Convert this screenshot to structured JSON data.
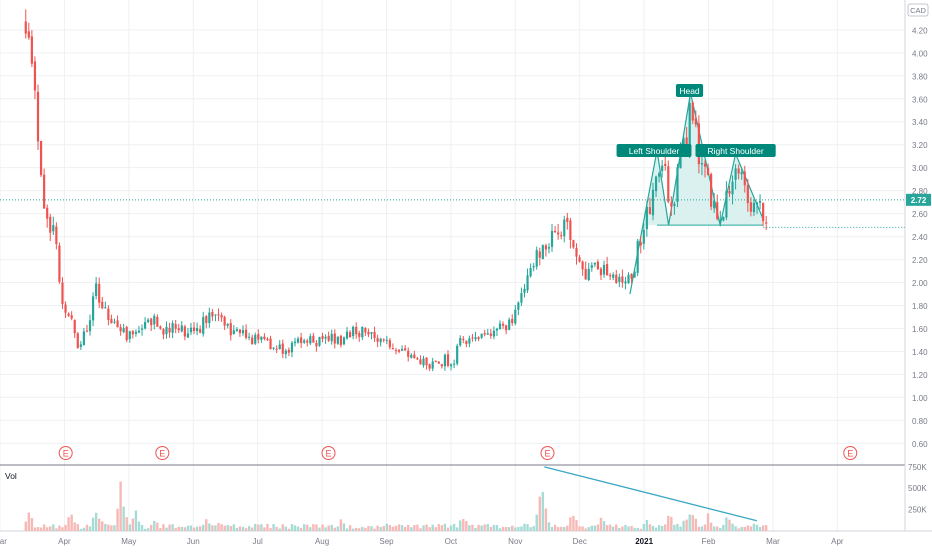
{
  "header": {
    "currency": "CAD"
  },
  "volume_label": "Vol",
  "colors": {
    "up": "#26a69a",
    "down": "#ef5350",
    "pattern_line": "#26a69a",
    "pattern_fill": "#d5efec",
    "label_bg": "#00897b",
    "earnings": "#ef5350",
    "grid": "#eef0f3",
    "axis_text": "#787b86"
  },
  "chart_data": {
    "type": "candlestick",
    "price_axis": {
      "ticks": [
        "0.60",
        "0.80",
        "1.00",
        "1.20",
        "1.40",
        "1.60",
        "1.80",
        "2.00",
        "2.20",
        "2.40",
        "2.60",
        "2.80",
        "3.00",
        "3.20",
        "3.40",
        "3.60",
        "3.80",
        "4.00",
        "4.20"
      ],
      "range": [
        0.42,
        4.46
      ],
      "current_price": "2.72",
      "reference_level": 2.48
    },
    "volume_axis": {
      "ticks": [
        "250K",
        "500K",
        "750K"
      ],
      "range": [
        0,
        760000
      ]
    },
    "time_axis": {
      "labels": [
        "Mar",
        "Apr",
        "May",
        "Jun",
        "Jul",
        "Aug",
        "Sep",
        "Oct",
        "Nov",
        "Dec",
        "2021",
        "Feb",
        "Mar",
        "Apr"
      ],
      "label_months": [
        0,
        1,
        2,
        3,
        4,
        5,
        6,
        7,
        8,
        9,
        10,
        11,
        12,
        13
      ],
      "range": [
        0,
        14.05
      ]
    },
    "earnings_markers": {
      "symbol": "E",
      "months": [
        1.02,
        2.52,
        5.1,
        8.5,
        13.2
      ]
    },
    "price_path": [
      [
        0.4,
        4.28
      ],
      [
        0.6,
        3.3
      ],
      [
        0.7,
        2.6
      ],
      [
        0.85,
        2.4
      ],
      [
        1.0,
        1.75
      ],
      [
        1.1,
        1.7
      ],
      [
        1.2,
        1.45
      ],
      [
        1.35,
        1.6
      ],
      [
        1.5,
        1.95
      ],
      [
        1.65,
        1.75
      ],
      [
        1.8,
        1.65
      ],
      [
        1.95,
        1.55
      ],
      [
        2.1,
        1.58
      ],
      [
        2.3,
        1.72
      ],
      [
        2.5,
        1.6
      ],
      [
        2.7,
        1.62
      ],
      [
        2.9,
        1.58
      ],
      [
        3.1,
        1.6
      ],
      [
        3.3,
        1.75
      ],
      [
        3.5,
        1.62
      ],
      [
        3.7,
        1.56
      ],
      [
        3.9,
        1.52
      ],
      [
        4.1,
        1.48
      ],
      [
        4.3,
        1.42
      ],
      [
        4.5,
        1.44
      ],
      [
        4.7,
        1.5
      ],
      [
        4.9,
        1.48
      ],
      [
        5.1,
        1.52
      ],
      [
        5.3,
        1.5
      ],
      [
        5.5,
        1.58
      ],
      [
        5.7,
        1.55
      ],
      [
        5.9,
        1.48
      ],
      [
        6.1,
        1.42
      ],
      [
        6.3,
        1.38
      ],
      [
        6.5,
        1.3
      ],
      [
        6.7,
        1.28
      ],
      [
        6.9,
        1.32
      ],
      [
        7.05,
        1.33
      ],
      [
        7.15,
        1.48
      ],
      [
        7.35,
        1.5
      ],
      [
        7.55,
        1.53
      ],
      [
        7.75,
        1.58
      ],
      [
        7.95,
        1.7
      ],
      [
        8.1,
        1.9
      ],
      [
        8.22,
        2.08
      ],
      [
        8.4,
        2.32
      ],
      [
        8.55,
        2.4
      ],
      [
        8.7,
        2.48
      ],
      [
        8.85,
        2.44
      ],
      [
        8.98,
        2.2
      ],
      [
        9.1,
        2.08
      ],
      [
        9.25,
        2.14
      ],
      [
        9.4,
        2.1
      ],
      [
        9.55,
        2.05
      ],
      [
        9.7,
        2.0
      ],
      [
        9.85,
        2.15
      ],
      [
        9.92,
        2.35
      ],
      [
        10.05,
        2.58
      ],
      [
        10.15,
        2.86
      ],
      [
        10.3,
        2.98
      ],
      [
        10.45,
        2.62
      ],
      [
        10.55,
        3.05
      ],
      [
        10.65,
        3.2
      ],
      [
        10.72,
        3.5
      ],
      [
        10.85,
        3.12
      ],
      [
        10.95,
        2.98
      ],
      [
        11.05,
        2.72
      ],
      [
        11.15,
        2.55
      ],
      [
        11.3,
        2.78
      ],
      [
        11.4,
        2.98
      ],
      [
        11.5,
        2.88
      ],
      [
        11.62,
        2.74
      ],
      [
        11.72,
        2.68
      ],
      [
        11.8,
        2.64
      ],
      [
        11.9,
        2.6
      ]
    ],
    "volume_spikes": [
      [
        0.45,
        300000
      ],
      [
        1.1,
        360000
      ],
      [
        1.5,
        380000
      ],
      [
        1.6,
        200000
      ],
      [
        1.88,
        620000
      ],
      [
        2.1,
        360000
      ],
      [
        2.4,
        200000
      ],
      [
        3.2,
        180000
      ],
      [
        3.4,
        160000
      ],
      [
        5.3,
        160000
      ],
      [
        6.7,
        100000
      ],
      [
        7.2,
        250000
      ],
      [
        7.25,
        140000
      ],
      [
        8.4,
        700000
      ],
      [
        8.45,
        420000
      ],
      [
        8.9,
        300000
      ],
      [
        9.35,
        220000
      ],
      [
        10.05,
        160000
      ],
      [
        10.4,
        300000
      ],
      [
        10.65,
        220000
      ],
      [
        10.75,
        320000
      ],
      [
        11.0,
        240000
      ],
      [
        11.3,
        220000
      ]
    ],
    "patterns": {
      "head_and_shoulders": {
        "labels": {
          "left": "Left Shoulder",
          "head": "Head",
          "right": "Right Shoulder"
        },
        "points": [
          [
            9.78,
            1.9
          ],
          [
            10.2,
            3.15
          ],
          [
            10.38,
            2.5
          ],
          [
            10.72,
            3.65
          ],
          [
            11.18,
            2.5
          ],
          [
            11.42,
            3.12
          ],
          [
            11.85,
            2.55
          ]
        ],
        "neckline": 2.5
      },
      "volume_trendline": [
        [
          8.45,
          750000
        ],
        [
          11.75,
          120000
        ]
      ]
    }
  }
}
